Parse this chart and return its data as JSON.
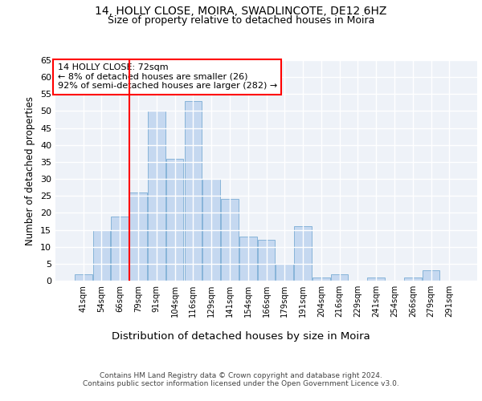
{
  "title1": "14, HOLLY CLOSE, MOIRA, SWADLINCOTE, DE12 6HZ",
  "title2": "Size of property relative to detached houses in Moira",
  "xlabel": "Distribution of detached houses by size in Moira",
  "ylabel": "Number of detached properties",
  "categories": [
    "41sqm",
    "54sqm",
    "66sqm",
    "79sqm",
    "91sqm",
    "104sqm",
    "116sqm",
    "129sqm",
    "141sqm",
    "154sqm",
    "166sqm",
    "179sqm",
    "191sqm",
    "204sqm",
    "216sqm",
    "229sqm",
    "241sqm",
    "254sqm",
    "266sqm",
    "279sqm",
    "291sqm"
  ],
  "values": [
    2,
    15,
    19,
    26,
    50,
    36,
    53,
    30,
    24,
    13,
    12,
    5,
    16,
    1,
    2,
    0,
    1,
    0,
    1,
    3,
    0
  ],
  "bar_color": "#c5d8f0",
  "bar_edge_color": "#7aadd4",
  "red_line_x": 2.5,
  "annotation_line1": "14 HOLLY CLOSE: 72sqm",
  "annotation_line2": "← 8% of detached houses are smaller (26)",
  "annotation_line3": "92% of semi-detached houses are larger (282) →",
  "ylim": [
    0,
    65
  ],
  "yticks": [
    0,
    5,
    10,
    15,
    20,
    25,
    30,
    35,
    40,
    45,
    50,
    55,
    60,
    65
  ],
  "footer1": "Contains HM Land Registry data © Crown copyright and database right 2024.",
  "footer2": "Contains public sector information licensed under the Open Government Licence v3.0.",
  "background_color": "#eef2f8",
  "fig_background": "#ffffff"
}
